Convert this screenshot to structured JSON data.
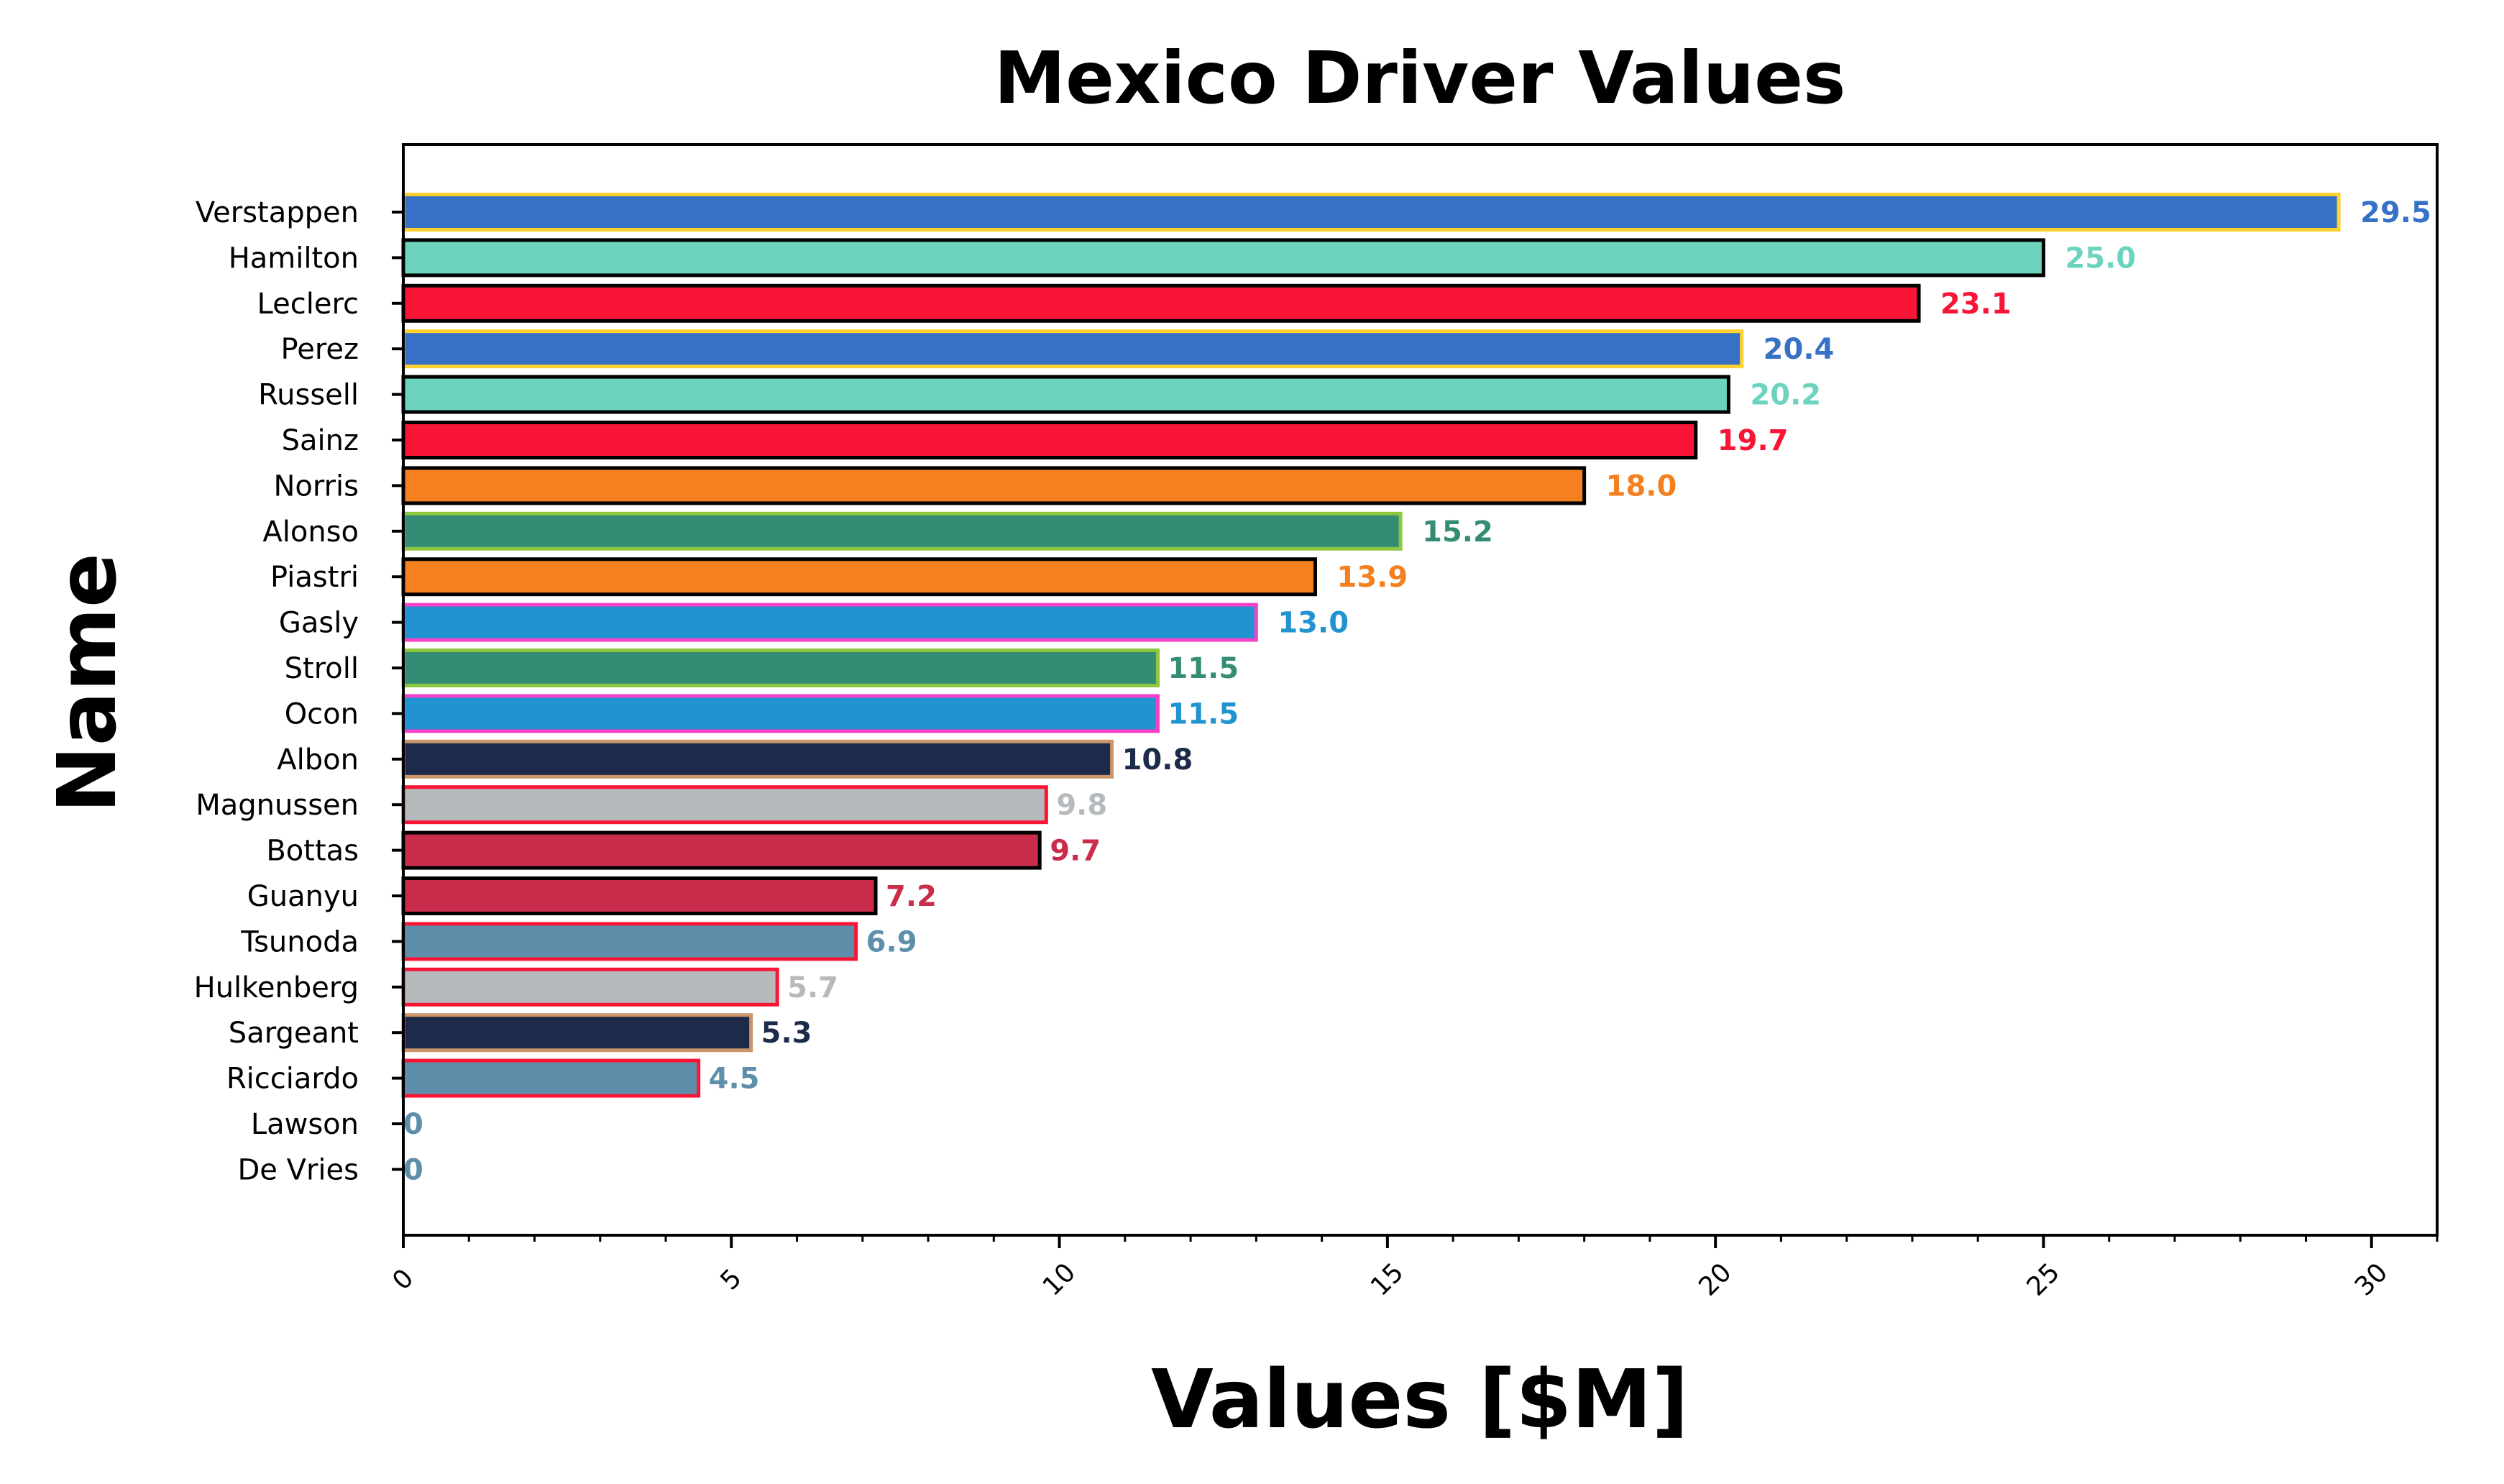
{
  "chart_data": {
    "type": "bar",
    "orientation": "horizontal",
    "title": "Mexico Driver Values",
    "xlabel": "Values [$M]",
    "ylabel": "Name",
    "xlim": [
      0,
      31
    ],
    "xticks": [
      "0",
      "5",
      "10",
      "15",
      "20",
      "25",
      "30"
    ],
    "grid": false,
    "categories": [
      "Verstappen",
      "Hamilton",
      "Leclerc",
      "Perez",
      "Russell",
      "Sainz",
      "Norris",
      "Alonso",
      "Piastri",
      "Gasly",
      "Stroll",
      "Ocon",
      "Albon",
      "Magnussen",
      "Bottas",
      "Guanyu",
      "Tsunoda",
      "Hulkenberg",
      "Sargeant",
      "Ricciardo",
      "Lawson",
      "De Vries"
    ],
    "values": [
      29.5,
      25.0,
      23.1,
      20.4,
      20.2,
      19.7,
      18.0,
      15.2,
      13.9,
      13.0,
      11.5,
      11.5,
      10.8,
      9.8,
      9.7,
      7.2,
      6.9,
      5.7,
      5.3,
      4.5,
      0,
      0
    ],
    "value_labels": [
      "29.5",
      "25.0",
      "23.1",
      "20.4",
      "20.2",
      "19.7",
      "18.0",
      "15.2",
      "13.9",
      "13.0",
      "11.5",
      "11.5",
      "10.8",
      "9.8",
      "9.7",
      "7.2",
      "6.9",
      "5.7",
      "5.3",
      "4.5",
      "0",
      "0"
    ],
    "fill_colors": [
      "#3671C6",
      "#6CD3BF",
      "#F91536",
      "#3671C6",
      "#6CD3BF",
      "#F91536",
      "#F58020",
      "#358C75",
      "#F58020",
      "#2293D1",
      "#358C75",
      "#2293D1",
      "#1E2A4A",
      "#B6BABD",
      "#C92D4B",
      "#C92D4B",
      "#5E8FAA",
      "#B6BABD",
      "#1E2A4A",
      "#5E8FAA",
      "#5E8FAA",
      "#5E8FAA"
    ],
    "edge_colors": [
      "#FFD12E",
      "#000000",
      "#000000",
      "#FFD12E",
      "#000000",
      "#000000",
      "#000000",
      "#8DC63F",
      "#000000",
      "#F542C8",
      "#8DC63F",
      "#F542C8",
      "#C9956A",
      "#F91536",
      "#000000",
      "#000000",
      "#F91536",
      "#F91536",
      "#C9956A",
      "#F91536",
      "#F91536",
      "#F91536"
    ]
  }
}
